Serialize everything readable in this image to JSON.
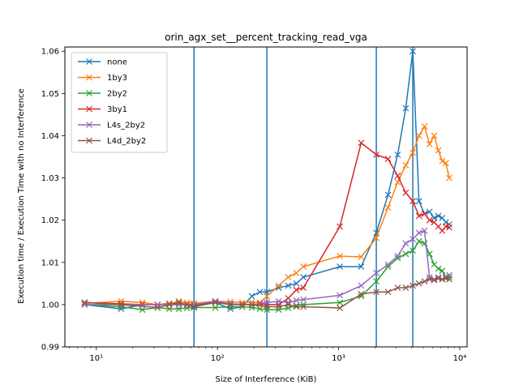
{
  "chart_data": {
    "type": "line",
    "title": "orin_agx_set__percent_tracking_read_vga",
    "xlabel": "Size of Interference (KiB)",
    "ylabel": "Execution time / Execution Time with no Interference",
    "xscale": "log",
    "xlim": [
      5.5,
      11500
    ],
    "ylim": [
      0.99,
      1.061
    ],
    "xticks": [
      {
        "value": 10,
        "label": "10¹"
      },
      {
        "value": 100,
        "label": "10²"
      },
      {
        "value": 1000,
        "label": "10³"
      },
      {
        "value": 10000,
        "label": "10⁴"
      }
    ],
    "yticks": [
      0.99,
      1.0,
      1.01,
      1.02,
      1.03,
      1.04,
      1.05,
      1.06
    ],
    "ytick_labels": [
      "0.99",
      "1.00",
      "1.01",
      "1.02",
      "1.03",
      "1.04",
      "1.05",
      "1.06"
    ],
    "vlines": [
      64,
      256,
      2048,
      4096
    ],
    "vline_color": "#1f77b4",
    "legend_position": "upper-left",
    "grid": false,
    "series": [
      {
        "name": "none",
        "color": "#1f77b4",
        "x": [
          8,
          16,
          24,
          32,
          40,
          48,
          56,
          64,
          96,
          128,
          160,
          192,
          224,
          256,
          320,
          384,
          448,
          512,
          1024,
          1536,
          2048,
          2560,
          3072,
          3584,
          4096,
          4608,
          5120,
          5632,
          6144,
          6656,
          7168,
          7680,
          8192
        ],
        "y": [
          1.0,
          0.999,
          1.0,
          1.0,
          1.0003,
          1.0,
          1.0,
          0.9998,
          1.0005,
          0.999,
          0.9995,
          1.002,
          1.003,
          1.003,
          1.004,
          1.0045,
          1.005,
          1.0065,
          1.009,
          1.009,
          1.017,
          1.026,
          1.0355,
          1.0465,
          1.06,
          1.0245,
          1.0215,
          1.022,
          1.0205,
          1.021,
          1.0205,
          1.0195,
          1.019
        ]
      },
      {
        "name": "1by3",
        "color": "#ff7f0e",
        "x": [
          8,
          16,
          24,
          32,
          40,
          48,
          56,
          64,
          96,
          128,
          160,
          192,
          224,
          256,
          320,
          384,
          448,
          512,
          1024,
          1536,
          2048,
          2560,
          3072,
          3584,
          4096,
          4608,
          5120,
          5632,
          6144,
          6656,
          7168,
          7680,
          8192
        ],
        "y": [
          1.0003,
          1.0008,
          1.0005,
          1.0,
          1.0002,
          1.0008,
          1.0005,
          1.0003,
          1.0008,
          1.0007,
          1.0005,
          1.0006,
          1.0005,
          1.002,
          1.0045,
          1.0065,
          1.0075,
          1.009,
          1.0115,
          1.0113,
          1.0158,
          1.023,
          1.029,
          1.033,
          1.036,
          1.04,
          1.0422,
          1.038,
          1.04,
          1.0365,
          1.034,
          1.0335,
          1.03
        ]
      },
      {
        "name": "2by2",
        "color": "#2ca02c",
        "x": [
          8,
          16,
          24,
          32,
          40,
          48,
          56,
          64,
          96,
          128,
          160,
          192,
          224,
          256,
          320,
          384,
          448,
          512,
          1024,
          1536,
          2048,
          2560,
          3072,
          3584,
          4096,
          4608,
          5120,
          5632,
          6144,
          6656,
          7168,
          7680,
          8192
        ],
        "y": [
          1.0,
          0.9995,
          0.9988,
          0.9993,
          0.999,
          0.999,
          0.9992,
          0.9993,
          0.9993,
          0.9995,
          0.9995,
          0.9993,
          0.999,
          0.9988,
          0.9988,
          0.9992,
          0.9998,
          1.0,
          1.0005,
          1.002,
          1.0055,
          1.009,
          1.011,
          1.012,
          1.0128,
          1.015,
          1.0145,
          1.012,
          1.0095,
          1.0085,
          1.008,
          1.0065,
          1.0065
        ]
      },
      {
        "name": "3by1",
        "color": "#d62728",
        "x": [
          8,
          16,
          24,
          32,
          40,
          48,
          56,
          64,
          96,
          128,
          160,
          192,
          224,
          256,
          320,
          384,
          448,
          512,
          1024,
          1536,
          2048,
          2560,
          3072,
          3584,
          4096,
          4608,
          5120,
          5632,
          6144,
          6656,
          7168,
          7680,
          8192
        ],
        "y": [
          1.0005,
          1.0002,
          1.0,
          1.0,
          1.0,
          1.0,
          1.0,
          1.0,
          1.0005,
          1.0002,
          1.0,
          1.0,
          1.0002,
          1.0,
          1.0,
          1.0015,
          1.0035,
          1.004,
          1.0185,
          1.0383,
          1.0355,
          1.0345,
          1.0305,
          1.0265,
          1.0245,
          1.021,
          1.0215,
          1.02,
          1.0195,
          1.0185,
          1.0175,
          1.0185,
          1.0183
        ]
      },
      {
        "name": "L4s_2by2",
        "color": "#9467bd",
        "x": [
          8,
          16,
          32,
          48,
          64,
          96,
          128,
          192,
          256,
          320,
          384,
          448,
          512,
          1024,
          1536,
          2048,
          2560,
          3072,
          3584,
          4096,
          4608,
          5120,
          5632,
          6144,
          6656,
          7168,
          7680,
          8192
        ],
        "y": [
          1.0,
          1.0,
          1.0,
          1.0,
          1.0,
          1.0008,
          1.0002,
          1.0,
          1.0005,
          1.0008,
          1.0005,
          1.001,
          1.0012,
          1.0022,
          1.0045,
          1.0075,
          1.0095,
          1.0115,
          1.0145,
          1.0155,
          1.017,
          1.0175,
          1.0065,
          1.006,
          1.0065,
          1.006,
          1.0065,
          1.007
        ]
      },
      {
        "name": "L4d_2by2",
        "color": "#8c564b",
        "x": [
          8,
          16,
          32,
          48,
          64,
          96,
          128,
          192,
          256,
          320,
          384,
          448,
          512,
          1024,
          1536,
          2048,
          2560,
          3072,
          3584,
          4096,
          4608,
          5120,
          5632,
          6144,
          6656,
          7168,
          7680,
          8192
        ],
        "y": [
          1.0005,
          1.0,
          0.9993,
          1.0005,
          0.9995,
          1.0005,
          1.0,
          1.0,
          0.9995,
          0.9995,
          1.0,
          0.9995,
          0.9995,
          0.9992,
          1.0025,
          1.003,
          1.003,
          1.004,
          1.004,
          1.0045,
          1.005,
          1.0055,
          1.006,
          1.0058,
          1.0062,
          1.006,
          1.0062,
          1.006
        ]
      }
    ]
  }
}
